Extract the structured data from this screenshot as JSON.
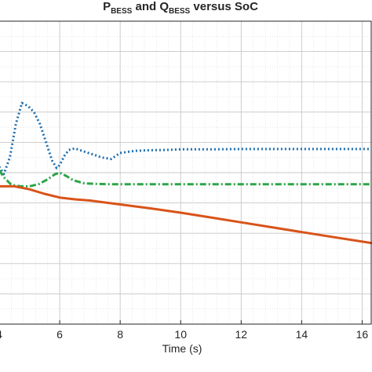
{
  "chart_data": {
    "type": "line",
    "title_parts": [
      {
        "text": "P",
        "sub": false
      },
      {
        "text": "BESS",
        "sub": true
      },
      {
        "text": " and Q",
        "sub": false
      },
      {
        "text": "BESS",
        "sub": true
      },
      {
        "text": " versus SoC",
        "sub": false
      }
    ],
    "xlabel": "Time (s)",
    "ylabel": "",
    "xlim": [
      4,
      16.3
    ],
    "ylim": [
      0,
      10
    ],
    "x_ticks": [
      4,
      6,
      8,
      10,
      12,
      14,
      16
    ],
    "x_tick_labels": [
      "4",
      "6",
      "8",
      "10",
      "12",
      "14",
      "16"
    ],
    "grid": true,
    "minor_grid": true,
    "series": [
      {
        "color": "#1f6fb0",
        "line_style": "dotted",
        "x": [
          4.0,
          4.15,
          4.35,
          4.55,
          4.75,
          4.95,
          5.15,
          5.35,
          5.55,
          5.75,
          5.9,
          6.0,
          6.15,
          6.3,
          6.5,
          6.8,
          7.1,
          7.4,
          7.7,
          8.0,
          8.5,
          9.0,
          9.5,
          10.0,
          11.0,
          12.0,
          13.0,
          14.0,
          15.0,
          16.3
        ],
        "y": [
          5.2,
          4.95,
          5.5,
          6.6,
          7.3,
          7.2,
          7.0,
          6.6,
          6.0,
          5.4,
          5.15,
          5.25,
          5.55,
          5.75,
          5.8,
          5.7,
          5.6,
          5.5,
          5.45,
          5.65,
          5.72,
          5.74,
          5.75,
          5.77,
          5.77,
          5.78,
          5.78,
          5.78,
          5.78,
          5.78
        ]
      },
      {
        "color": "#2ca548",
        "line_style": "dashdot",
        "x": [
          4.0,
          4.15,
          4.4,
          4.7,
          5.0,
          5.3,
          5.6,
          5.85,
          6.0,
          6.2,
          6.45,
          6.8,
          7.2,
          7.6,
          8.0,
          9.0,
          10.0,
          12.0,
          14.0,
          16.3
        ],
        "y": [
          5.08,
          4.85,
          4.6,
          4.55,
          4.55,
          4.62,
          4.78,
          4.95,
          5.0,
          4.9,
          4.75,
          4.65,
          4.63,
          4.62,
          4.62,
          4.62,
          4.62,
          4.62,
          4.62,
          4.62
        ]
      },
      {
        "color": "#d95319",
        "line_style": "solid",
        "x": [
          4.0,
          4.5,
          5.0,
          5.5,
          6.0,
          6.5,
          7.0,
          8.0,
          9.0,
          10.0,
          11.0,
          12.0,
          13.0,
          14.0,
          15.0,
          16.3
        ],
        "y": [
          4.55,
          4.55,
          4.45,
          4.3,
          4.18,
          4.12,
          4.08,
          3.95,
          3.82,
          3.68,
          3.52,
          3.36,
          3.2,
          3.04,
          2.88,
          2.68
        ]
      }
    ]
  }
}
